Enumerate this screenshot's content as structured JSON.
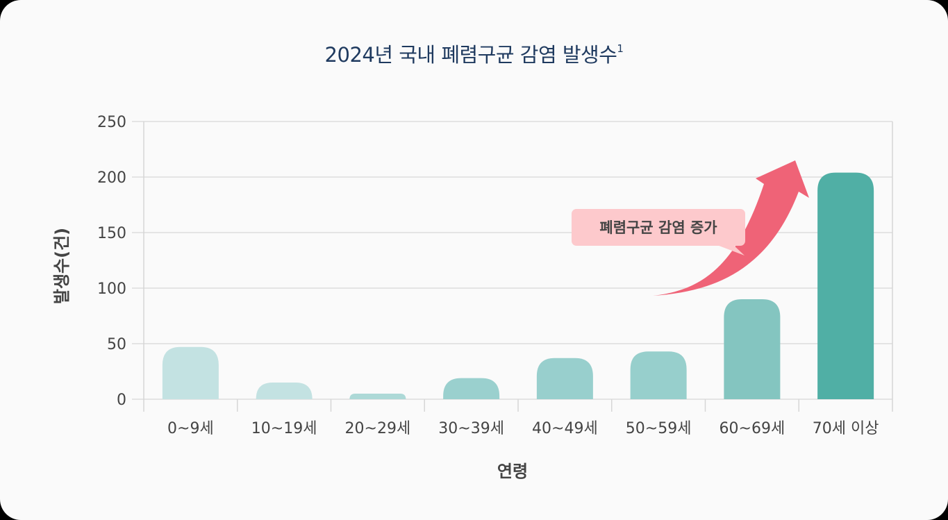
{
  "title": "2024년 국내 폐렴구균 감염 발생수",
  "title_sup": "1",
  "callout": "폐렴구균 감염 증가",
  "colors": {
    "title": "#1f3a5f",
    "arrow": "#ef6377",
    "callout_bg": "#fdc9cc",
    "bars": [
      "#c3e2e2",
      "#c3e2e2",
      "#add9d7",
      "#9ad0ce",
      "#98cfcd",
      "#97cfcc",
      "#84c5c0",
      "#50afa5"
    ]
  },
  "chart_data": {
    "type": "bar",
    "title": "2024년 국내 폐렴구균 감염 발생수¹",
    "xlabel": "연령",
    "ylabel": "발생수(건)",
    "categories": [
      "0~9세",
      "10~19세",
      "20~29세",
      "30~39세",
      "40~49세",
      "50~59세",
      "60~69세",
      "70세 이상"
    ],
    "values": [
      47,
      15,
      5,
      19,
      37,
      43,
      90,
      204
    ],
    "ylim": [
      0,
      250
    ],
    "yticks": [
      0,
      50,
      100,
      150,
      200,
      250
    ],
    "grid": true,
    "annotation": "폐렴구균 감염 증가"
  }
}
